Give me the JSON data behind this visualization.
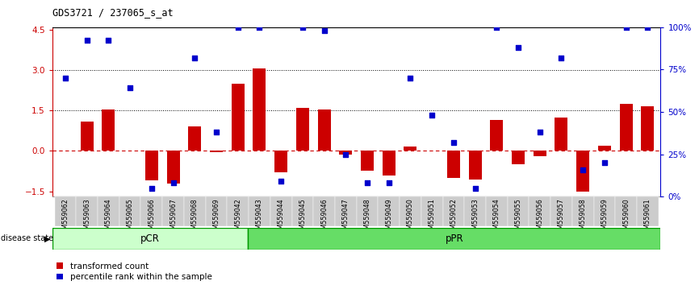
{
  "title": "GDS3721 / 237065_s_at",
  "samples": [
    "GSM559062",
    "GSM559063",
    "GSM559064",
    "GSM559065",
    "GSM559066",
    "GSM559067",
    "GSM559068",
    "GSM559069",
    "GSM559042",
    "GSM559043",
    "GSM559044",
    "GSM559045",
    "GSM559046",
    "GSM559047",
    "GSM559048",
    "GSM559049",
    "GSM559050",
    "GSM559051",
    "GSM559052",
    "GSM559053",
    "GSM559054",
    "GSM559055",
    "GSM559056",
    "GSM559057",
    "GSM559058",
    "GSM559059",
    "GSM559060",
    "GSM559061"
  ],
  "transformed_counts": [
    0.0,
    1.1,
    1.55,
    0.0,
    -1.1,
    -1.2,
    0.9,
    -0.05,
    2.5,
    3.05,
    -0.8,
    1.6,
    1.55,
    -0.15,
    -0.75,
    -0.9,
    0.15,
    0.0,
    -1.0,
    -1.05,
    1.15,
    -0.5,
    -0.2,
    1.25,
    -1.5,
    0.2,
    1.75,
    1.65
  ],
  "percentile_ranks": [
    70,
    92,
    92,
    64,
    5,
    8,
    82,
    38,
    100,
    100,
    9,
    100,
    98,
    25,
    8,
    8,
    70,
    48,
    32,
    5,
    100,
    88,
    38,
    82,
    16,
    20,
    100,
    100
  ],
  "pcr_count": 9,
  "ppr_count": 19,
  "bar_color": "#cc0000",
  "dot_color": "#0000cc",
  "pcr_color": "#ccffcc",
  "ppr_color": "#66dd66",
  "ylim": [
    -1.7,
    4.6
  ],
  "xticklabel_fontsize": 6.0,
  "bar_width": 0.6
}
